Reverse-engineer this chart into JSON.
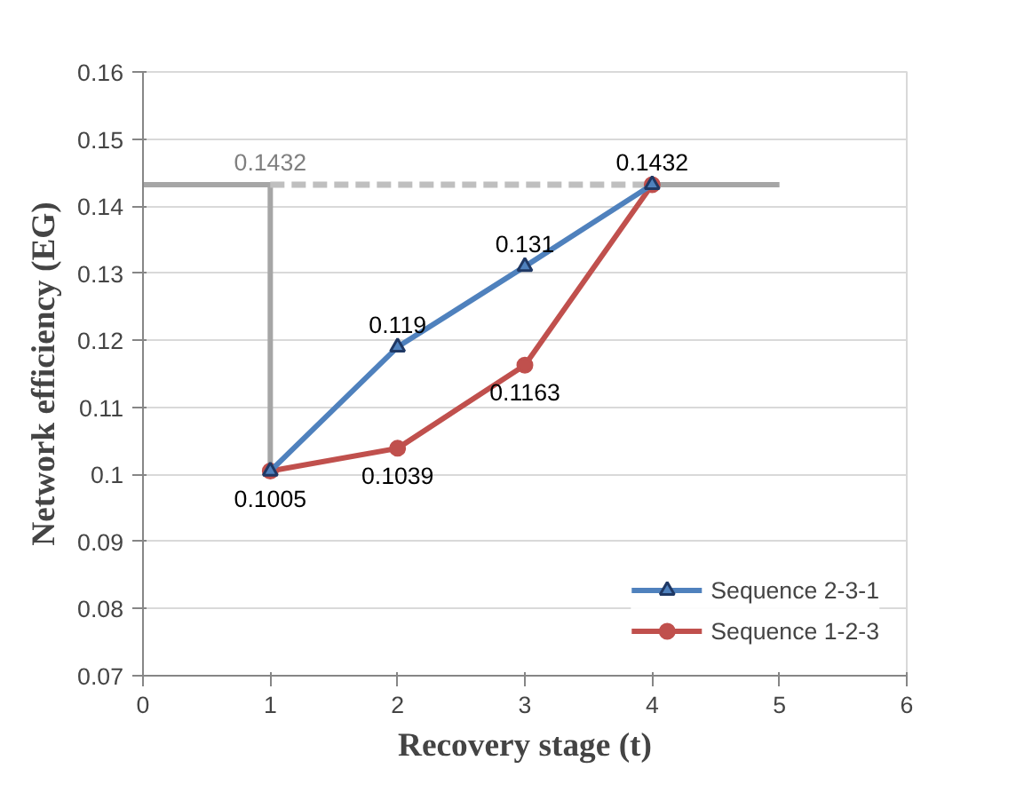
{
  "chart_data": {
    "type": "line",
    "xlabel": "Recovery stage (t)",
    "ylabel": "Network efficiency (EG)",
    "xlim": [
      0,
      6
    ],
    "xticks": [
      0,
      1,
      2,
      3,
      4,
      5,
      6
    ],
    "ylim": [
      0.07,
      0.16
    ],
    "yticks": [
      0.07,
      0.08,
      0.09,
      0.1,
      0.11,
      0.12,
      0.13,
      0.14,
      0.15,
      0.16
    ],
    "grid": "y",
    "legend": "bottom right",
    "series": [
      {
        "color": "#a6a6a6",
        "x": [
          0,
          1,
          1
        ],
        "values": [
          0.1432,
          0.1432,
          0.1005
        ],
        "marker": "none",
        "line_style": "solid",
        "value_labels": [
          null,
          "0.1432",
          null
        ]
      },
      {
        "color": "#bfbfbf",
        "x": [
          1,
          4
        ],
        "values": [
          0.1432,
          0.1432
        ],
        "marker": "none",
        "line_style": "dashed"
      },
      {
        "color": "#a6a6a6",
        "x": [
          4,
          5
        ],
        "values": [
          0.1432,
          0.1432
        ],
        "marker": "none",
        "line_style": "solid"
      },
      {
        "name": "Sequence 2-3-1",
        "color": "#4f81bd",
        "x": [
          1,
          2,
          3,
          4
        ],
        "values": [
          0.1005,
          0.119,
          0.131,
          0.1432
        ],
        "marker": "triangle",
        "line_style": "solid",
        "value_labels": [
          null,
          "0.119",
          "0.131",
          "0.1432"
        ]
      },
      {
        "name": "Sequence 1-2-3",
        "color": "#c0504d",
        "x": [
          1,
          2,
          3,
          4
        ],
        "values": [
          0.1005,
          0.1039,
          0.1163,
          0.1432
        ],
        "marker": "circle",
        "line_style": "solid",
        "value_labels": [
          "0.1005",
          "0.1039",
          "0.1163",
          null
        ]
      }
    ]
  }
}
